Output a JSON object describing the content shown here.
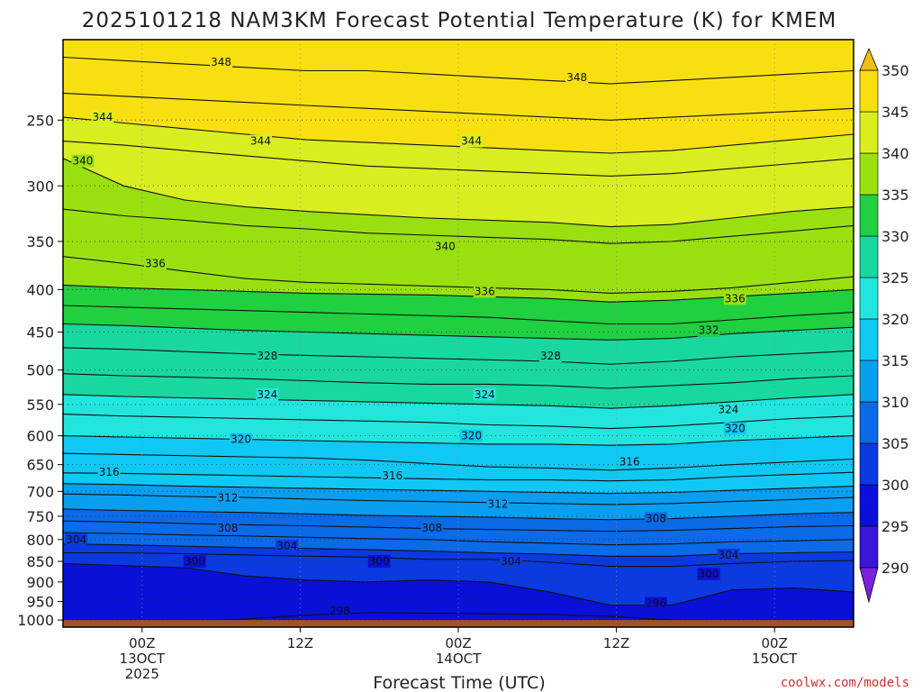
{
  "chart_data": {
    "type": "heatmap",
    "title": "2025101218 NAM3KM Forecast Potential Temperature (K) for KMEM",
    "xlabel": "Forecast Time (UTC)",
    "ylabel": "",
    "credit": "coolwx.com/models",
    "y_axis": {
      "unit": "hPa",
      "scale": "log",
      "range": [
        1020,
        200
      ],
      "ticks": [
        "250",
        "300",
        "350",
        "400",
        "450",
        "500",
        "550",
        "600",
        "650",
        "700",
        "750",
        "800",
        "850",
        "900",
        "950",
        "1000"
      ]
    },
    "x_axis": {
      "unit": "forecast hour",
      "range": [
        -6,
        54
      ],
      "ticks": [
        {
          "hour": 0,
          "line1": "00Z",
          "line2": "13OCT",
          "line3": "2025"
        },
        {
          "hour": 12,
          "line1": "12Z",
          "line2": "",
          "line3": ""
        },
        {
          "hour": 24,
          "line1": "00Z",
          "line2": "14OCT",
          "line3": ""
        },
        {
          "hour": 36,
          "line1": "12Z",
          "line2": "",
          "line3": ""
        },
        {
          "hour": 48,
          "line1": "00Z",
          "line2": "15OCT",
          "line3": ""
        }
      ]
    },
    "grid": true,
    "colorbar": {
      "levels": [
        "290",
        "295",
        "300",
        "305",
        "310",
        "315",
        "320",
        "325",
        "330",
        "335",
        "340",
        "345",
        "350"
      ],
      "colors": [
        "#7b1fe0",
        "#3a16d8",
        "#0a10d8",
        "#0a3ae0",
        "#0a6ae8",
        "#0a9ef0",
        "#10c8f4",
        "#22e6de",
        "#18d8a0",
        "#20d040",
        "#9ae010",
        "#d8ee20",
        "#f8e010",
        "#f0c010"
      ]
    },
    "surface": {
      "pressure_top": 1000,
      "color": "#a0522d"
    },
    "isentropes": [
      {
        "theta": 296,
        "hpa": [
          1010,
          1010,
          1010,
          1010,
          1010,
          1010,
          1009,
          1010,
          1010,
          1010,
          1010,
          1011,
          1012,
          1012
        ]
      },
      {
        "theta": 298,
        "hpa": [
          1005,
          1005,
          1004,
          997,
          987,
          980,
          981,
          983,
          985,
          990,
          1000,
          1005,
          1007,
          1008
        ]
      },
      {
        "theta": 300,
        "hpa": [
          855,
          860,
          865,
          885,
          895,
          900,
          895,
          900,
          925,
          960,
          960,
          920,
          915,
          925
        ]
      },
      {
        "theta": 302,
        "hpa": [
          830,
          830,
          832,
          835,
          838,
          840,
          845,
          845,
          852,
          862,
          862,
          855,
          850,
          848
        ]
      },
      {
        "theta": 304,
        "hpa": [
          810,
          812,
          815,
          818,
          820,
          823,
          826,
          830,
          833,
          838,
          838,
          832,
          830,
          828
        ]
      },
      {
        "theta": 306,
        "hpa": [
          785,
          787,
          790,
          792,
          795,
          798,
          800,
          805,
          808,
          812,
          810,
          805,
          803,
          800
        ]
      },
      {
        "theta": 308,
        "hpa": [
          760,
          762,
          765,
          768,
          770,
          773,
          776,
          778,
          780,
          782,
          780,
          776,
          772,
          770
        ]
      },
      {
        "theta": 310,
        "hpa": [
          735,
          738,
          740,
          742,
          745,
          748,
          750,
          752,
          755,
          757,
          755,
          750,
          745,
          742
        ]
      },
      {
        "theta": 312,
        "hpa": [
          705,
          707,
          710,
          712,
          715,
          718,
          720,
          722,
          724,
          726,
          724,
          720,
          716,
          712
        ]
      },
      {
        "theta": 314,
        "hpa": [
          685,
          687,
          690,
          692,
          694,
          696,
          698,
          700,
          702,
          704,
          702,
          698,
          694,
          690
        ]
      },
      {
        "theta": 316,
        "hpa": [
          665,
          666,
          668,
          670,
          672,
          674,
          676,
          678,
          678,
          680,
          678,
          672,
          668,
          664
        ]
      },
      {
        "theta": 318,
        "hpa": [
          630,
          632,
          634,
          636,
          638,
          642,
          648,
          654,
          656,
          660,
          656,
          650,
          645,
          640
        ]
      },
      {
        "theta": 320,
        "hpa": [
          600,
          602,
          604,
          606,
          608,
          610,
          612,
          614,
          614,
          616,
          614,
          608,
          604,
          600
        ]
      },
      {
        "theta": 322,
        "hpa": [
          565,
          568,
          570,
          572,
          574,
          576,
          578,
          582,
          584,
          588,
          584,
          578,
          572,
          568
        ]
      },
      {
        "theta": 324,
        "hpa": [
          535,
          538,
          540,
          542,
          544,
          546,
          548,
          550,
          552,
          556,
          552,
          546,
          540,
          535
        ]
      },
      {
        "theta": 326,
        "hpa": [
          505,
          508,
          510,
          512,
          515,
          518,
          520,
          520,
          522,
          526,
          522,
          518,
          512,
          508
        ]
      },
      {
        "theta": 328,
        "hpa": [
          470,
          472,
          475,
          478,
          480,
          482,
          484,
          486,
          488,
          492,
          488,
          482,
          478,
          474
        ]
      },
      {
        "theta": 330,
        "hpa": [
          440,
          442,
          445,
          448,
          450,
          452,
          454,
          456,
          458,
          460,
          458,
          452,
          448,
          444
        ]
      },
      {
        "theta": 332,
        "hpa": [
          418,
          420,
          422,
          424,
          426,
          428,
          430,
          432,
          436,
          440,
          440,
          435,
          430,
          426
        ]
      },
      {
        "theta": 334,
        "hpa": [
          395,
          398,
          400,
          402,
          404,
          405,
          406,
          408,
          410,
          414,
          412,
          408,
          404,
          400
        ]
      },
      {
        "theta": 336,
        "hpa": [
          365,
          372,
          380,
          388,
          392,
          394,
          396,
          398,
          400,
          404,
          402,
          398,
          392,
          386
        ]
      },
      {
        "theta": 338,
        "hpa": [
          320,
          326,
          330,
          335,
          338,
          342,
          344,
          346,
          348,
          352,
          350,
          345,
          340,
          335
        ]
      },
      {
        "theta": 340,
        "hpa": [
          278,
          300,
          312,
          318,
          322,
          325,
          328,
          330,
          332,
          336,
          334,
          328,
          322,
          318
        ]
      },
      {
        "theta": 342,
        "hpa": [
          265,
          268,
          272,
          276,
          280,
          284,
          286,
          288,
          290,
          292,
          290,
          286,
          282,
          278
        ]
      },
      {
        "theta": 344,
        "hpa": [
          248,
          252,
          256,
          260,
          264,
          266,
          268,
          270,
          272,
          274,
          272,
          268,
          264,
          260
        ]
      },
      {
        "theta": 346,
        "hpa": [
          232,
          234,
          236,
          238,
          240,
          242,
          244,
          246,
          248,
          250,
          248,
          246,
          244,
          242
        ]
      },
      {
        "theta": 348,
        "hpa": [
          210,
          212,
          214,
          216,
          218,
          218,
          220,
          222,
          224,
          226,
          224,
          222,
          220,
          218
        ]
      }
    ],
    "contour_labels": [
      {
        "text": "348",
        "hour": 6,
        "hpa": 213
      },
      {
        "text": "348",
        "hour": 33,
        "hpa": 222
      },
      {
        "text": "344",
        "hour": -3,
        "hpa": 248
      },
      {
        "text": "344",
        "hour": 9,
        "hpa": 265
      },
      {
        "text": "344",
        "hour": 25,
        "hpa": 265
      },
      {
        "text": "340",
        "hour": -4.5,
        "hpa": 280
      },
      {
        "text": "340",
        "hour": 23,
        "hpa": 355
      },
      {
        "text": "336",
        "hour": 1,
        "hpa": 372
      },
      {
        "text": "336",
        "hour": 26,
        "hpa": 402
      },
      {
        "text": "336",
        "hour": 45,
        "hpa": 410
      },
      {
        "text": "332",
        "hour": 43,
        "hpa": 448
      },
      {
        "text": "328",
        "hour": 9.5,
        "hpa": 481
      },
      {
        "text": "328",
        "hour": 31,
        "hpa": 481
      },
      {
        "text": "324",
        "hour": 9.5,
        "hpa": 535
      },
      {
        "text": "324",
        "hour": 26,
        "hpa": 535
      },
      {
        "text": "324",
        "hour": 44.5,
        "hpa": 558
      },
      {
        "text": "320",
        "hour": 7.5,
        "hpa": 606
      },
      {
        "text": "320",
        "hour": 25,
        "hpa": 600
      },
      {
        "text": "320",
        "hour": 45,
        "hpa": 588
      },
      {
        "text": "316",
        "hour": -2.5,
        "hpa": 664
      },
      {
        "text": "316",
        "hour": 19,
        "hpa": 670
      },
      {
        "text": "316",
        "hour": 37,
        "hpa": 645
      },
      {
        "text": "312",
        "hour": 6.5,
        "hpa": 713
      },
      {
        "text": "312",
        "hour": 27,
        "hpa": 725
      },
      {
        "text": "308",
        "hour": 6.5,
        "hpa": 775
      },
      {
        "text": "308",
        "hour": 22,
        "hpa": 775
      },
      {
        "text": "308",
        "hour": 39,
        "hpa": 755
      },
      {
        "text": "304",
        "hour": -5,
        "hpa": 800
      },
      {
        "text": "304",
        "hour": 11,
        "hpa": 815
      },
      {
        "text": "304",
        "hour": 28,
        "hpa": 850
      },
      {
        "text": "304",
        "hour": 44.5,
        "hpa": 835
      },
      {
        "text": "300",
        "hour": 4,
        "hpa": 850
      },
      {
        "text": "300",
        "hour": 18,
        "hpa": 850
      },
      {
        "text": "300",
        "hour": 43,
        "hpa": 880
      },
      {
        "text": "298",
        "hour": 15,
        "hpa": 975
      },
      {
        "text": "296",
        "hour": 39,
        "hpa": 955
      }
    ]
  }
}
